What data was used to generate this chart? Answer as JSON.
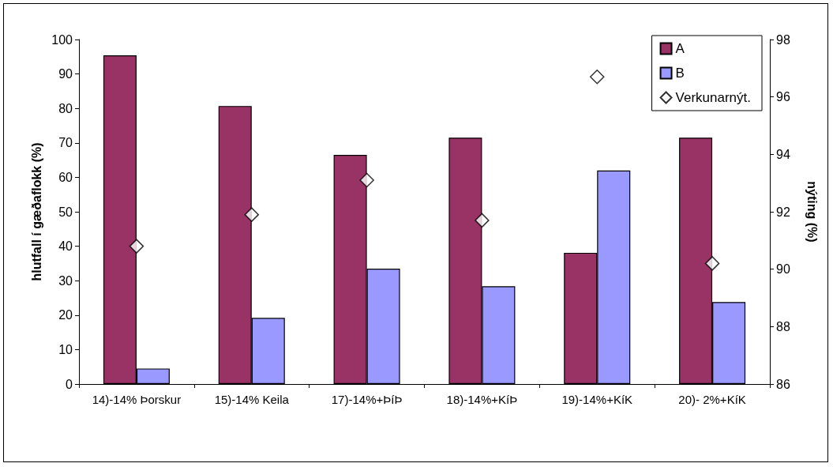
{
  "chart_data": {
    "type": "bar",
    "categories": [
      "14)-14% Þorskur",
      "15)-14% Keila",
      "17)-14%+ÞíÞ",
      "18)-14%+KíÞ",
      "19)-14%+KíK",
      "20)- 2%+KíK"
    ],
    "ylabel": "hlutfall í gæðaflokk (%)",
    "y2label": "nýting (%)",
    "series": [
      {
        "name": "A",
        "color": "#993366",
        "values": [
          95.4,
          80.7,
          66.5,
          71.5,
          38.1,
          71.5
        ]
      },
      {
        "name": "B",
        "color": "#9999ff",
        "values": [
          4.5,
          19.2,
          33.5,
          28.4,
          62.0,
          23.8
        ]
      },
      {
        "name": "Verkunarnýt.",
        "type": "scatter",
        "axis": "y2",
        "marker": "diamond",
        "color": "#ffffff",
        "values": [
          90.8,
          91.9,
          93.1,
          91.7,
          96.7,
          90.2
        ]
      }
    ],
    "ylim": [
      0,
      100
    ],
    "yticks": [
      0,
      10,
      20,
      30,
      40,
      50,
      60,
      70,
      80,
      90,
      100
    ],
    "y2lim": [
      86,
      98
    ],
    "y2ticks": [
      86,
      88,
      90,
      92,
      94,
      96,
      98
    ],
    "grid": false,
    "legend": "top right"
  }
}
